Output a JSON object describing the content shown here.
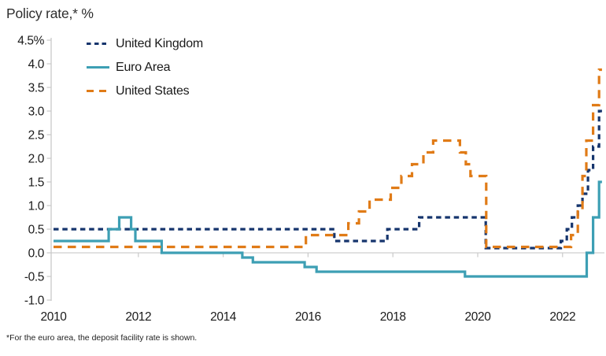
{
  "title": "Policy rate,* %",
  "footnote": "*For the euro area, the deposit facility rate is shown.",
  "colors": {
    "uk": "#16356d",
    "euro_area": "#3d9fb4",
    "us": "#e07b17",
    "axis": "#c9c9c9",
    "zero_gridline": "#cfcfcf",
    "tick_label": "#1a1a1a"
  },
  "legend": [
    {
      "label": "United Kingdom",
      "color": "#16356d",
      "style": "dashed-short"
    },
    {
      "label": "Euro Area",
      "color": "#3d9fb4",
      "style": "solid"
    },
    {
      "label": "United States",
      "color": "#e07b17",
      "style": "dashed-long"
    }
  ],
  "chart_data": {
    "type": "line",
    "interpolation": "step-after",
    "title": "Policy rate,* %",
    "ylabel": "%",
    "x_range": [
      2010,
      2022.93
    ],
    "y_range": [
      -1.0,
      4.5
    ],
    "grid": "zero-line-only",
    "legend_position": "top-left-inside",
    "y_ticks": [
      {
        "v": 4.5,
        "label": "4.5%"
      },
      {
        "v": 4.0,
        "label": "4.0"
      },
      {
        "v": 3.5,
        "label": "3.5"
      },
      {
        "v": 3.0,
        "label": "3.0"
      },
      {
        "v": 2.5,
        "label": "2.5"
      },
      {
        "v": 2.0,
        "label": "2.0"
      },
      {
        "v": 1.5,
        "label": "1.5"
      },
      {
        "v": 1.0,
        "label": "1.0"
      },
      {
        "v": 0.5,
        "label": "0.5"
      },
      {
        "v": 0.0,
        "label": "0.0"
      },
      {
        "v": -0.5,
        "label": "-0.5"
      },
      {
        "v": -1.0,
        "label": "-1.0"
      }
    ],
    "x_labels": [
      {
        "v": 2010,
        "label": "2010"
      },
      {
        "v": 2012,
        "label": "2012"
      },
      {
        "v": 2014,
        "label": "2014"
      },
      {
        "v": 2016,
        "label": "2016"
      },
      {
        "v": 2018,
        "label": "2018"
      },
      {
        "v": 2020,
        "label": "2020"
      },
      {
        "v": 2022,
        "label": "2022"
      }
    ],
    "x_tick_years": [
      2012,
      2014,
      2016,
      2018,
      2020,
      2022
    ],
    "series": [
      {
        "name": "United Kingdom",
        "color": "#16356d",
        "dash": [
          6.5,
          4.8
        ],
        "width": 3.2,
        "points": [
          [
            2010.0,
            0.5
          ],
          [
            2016.62,
            0.25
          ],
          [
            2017.87,
            0.5
          ],
          [
            2018.62,
            0.75
          ],
          [
            2020.19,
            0.1
          ],
          [
            2021.96,
            0.25
          ],
          [
            2022.1,
            0.5
          ],
          [
            2022.22,
            0.75
          ],
          [
            2022.36,
            1.0
          ],
          [
            2022.47,
            1.25
          ],
          [
            2022.6,
            1.75
          ],
          [
            2022.72,
            2.25
          ],
          [
            2022.86,
            3.0
          ]
        ]
      },
      {
        "name": "Euro Area",
        "color": "#3d9fb4",
        "dash": null,
        "width": 3.2,
        "points": [
          [
            2010.0,
            0.25
          ],
          [
            2011.3,
            0.5
          ],
          [
            2011.55,
            0.75
          ],
          [
            2011.83,
            0.5
          ],
          [
            2011.93,
            0.25
          ],
          [
            2012.55,
            0.0
          ],
          [
            2014.45,
            -0.1
          ],
          [
            2014.7,
            -0.2
          ],
          [
            2015.92,
            -0.3
          ],
          [
            2016.2,
            -0.4
          ],
          [
            2019.7,
            -0.5
          ],
          [
            2022.57,
            0.0
          ],
          [
            2022.72,
            0.75
          ],
          [
            2022.86,
            1.5
          ]
        ]
      },
      {
        "name": "United States",
        "color": "#e07b17",
        "dash": [
          10.5,
          7.5
        ],
        "width": 3.2,
        "points": [
          [
            2010.0,
            0.125
          ],
          [
            2015.95,
            0.375
          ],
          [
            2016.95,
            0.625
          ],
          [
            2017.2,
            0.875
          ],
          [
            2017.45,
            1.125
          ],
          [
            2017.95,
            1.375
          ],
          [
            2018.2,
            1.625
          ],
          [
            2018.45,
            1.875
          ],
          [
            2018.72,
            2.125
          ],
          [
            2018.95,
            2.375
          ],
          [
            2019.58,
            2.125
          ],
          [
            2019.72,
            1.875
          ],
          [
            2019.83,
            1.625
          ],
          [
            2020.2,
            0.125
          ],
          [
            2022.2,
            0.375
          ],
          [
            2022.36,
            0.875
          ],
          [
            2022.47,
            1.625
          ],
          [
            2022.56,
            2.375
          ],
          [
            2022.72,
            3.125
          ],
          [
            2022.86,
            3.875
          ]
        ]
      }
    ]
  }
}
